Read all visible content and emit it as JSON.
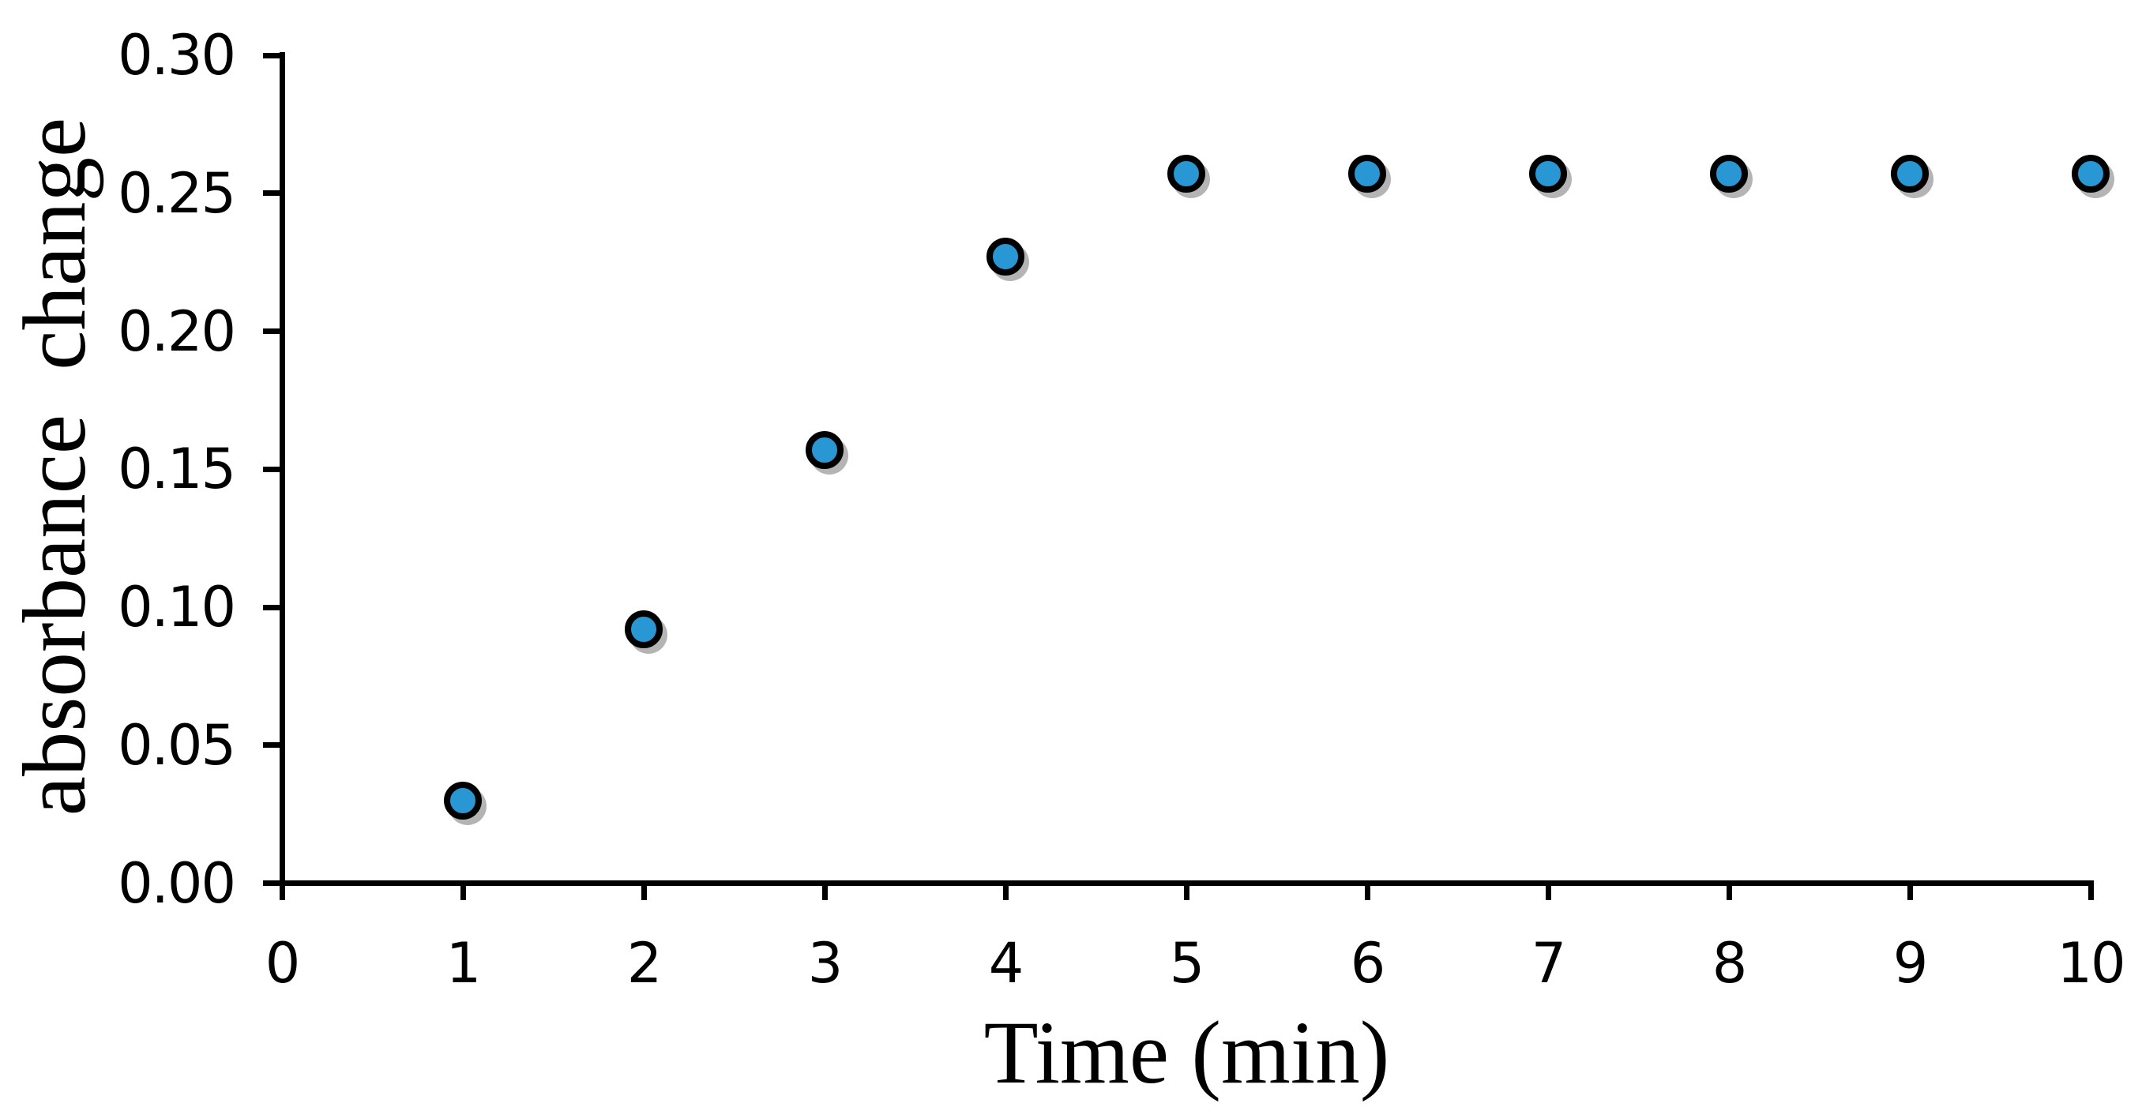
{
  "figure": {
    "background_color": "#ffffff",
    "text_color": "#000000"
  },
  "chart_data": {
    "type": "scatter",
    "title": "",
    "xlabel": "Time (min)",
    "ylabel": "absorbance change",
    "x": [
      1,
      2,
      3,
      4,
      5,
      6,
      7,
      8,
      9,
      10
    ],
    "y": [
      0.03,
      0.092,
      0.157,
      0.227,
      0.257,
      0.257,
      0.257,
      0.257,
      0.257,
      0.257
    ],
    "xlim": [
      0,
      10
    ],
    "ylim": [
      0.0,
      0.3
    ],
    "x_ticks": [
      0,
      1,
      2,
      3,
      4,
      5,
      6,
      7,
      8,
      9,
      10
    ],
    "x_tick_labels": [
      "0",
      "1",
      "2",
      "3",
      "4",
      "5",
      "6",
      "7",
      "8",
      "9",
      "10"
    ],
    "y_ticks": [
      0.0,
      0.05,
      0.1,
      0.15,
      0.2,
      0.25,
      0.3
    ],
    "y_tick_labels": [
      "0.00",
      "0.05",
      "0.10",
      "0.15",
      "0.20",
      "0.25",
      "0.30"
    ],
    "grid": false,
    "legend": "none",
    "marker": {
      "shape": "circle",
      "fill_color": "#2897D3",
      "outline_color": "#000000",
      "shadow_color": "rgba(130,130,130,0.6)"
    },
    "axis_color": "#000000"
  }
}
